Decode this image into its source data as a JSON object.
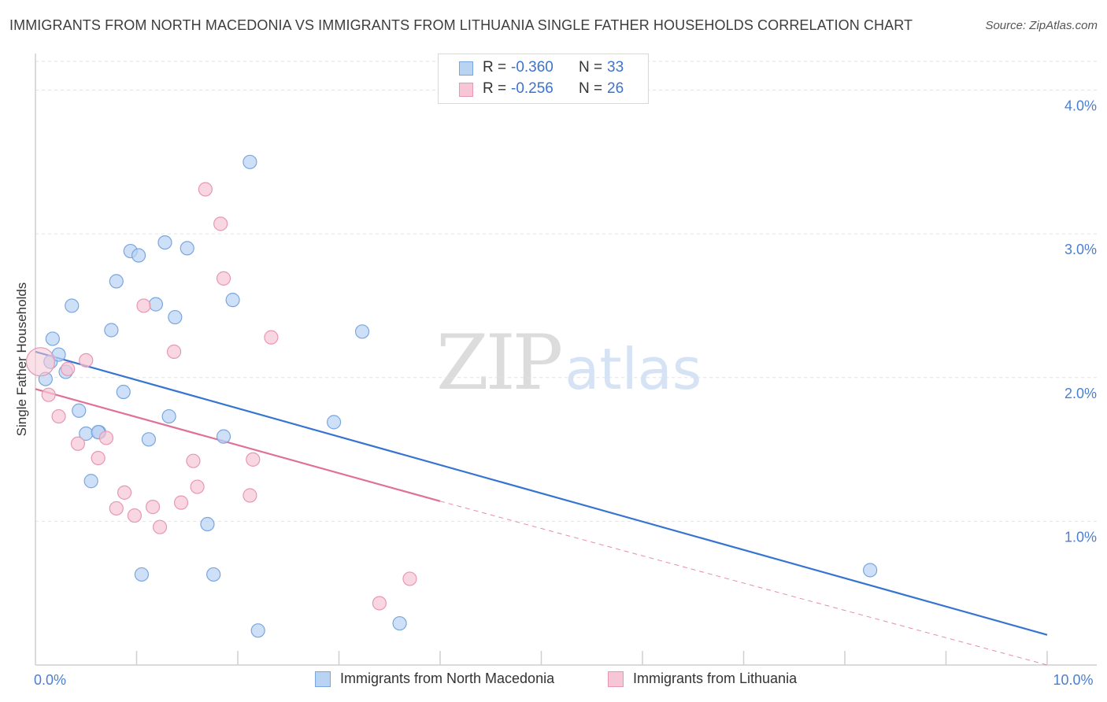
{
  "header": {
    "title": "IMMIGRANTS FROM NORTH MACEDONIA VS IMMIGRANTS FROM LITHUANIA SINGLE FATHER HOUSEHOLDS CORRELATION CHART",
    "source": "Source: ZipAtlas.com"
  },
  "watermark": {
    "zip": "ZIP",
    "atlas": "atlas"
  },
  "legend": {
    "rows": [
      {
        "r_label": "R =",
        "r_value": "-0.360",
        "n_label": "N =",
        "n_value": "33"
      },
      {
        "r_label": "R =",
        "r_value": "-0.256",
        "n_label": "N =",
        "n_value": "26"
      }
    ]
  },
  "bottom_legend": {
    "series_a": "Immigrants from North Macedonia",
    "series_b": "Immigrants from Lithuania"
  },
  "colors": {
    "blue_fill": "#b9d3f3",
    "blue_stroke": "#7aa6df",
    "blue_line": "#3575d1",
    "pink_fill": "#f7c6d6",
    "pink_stroke": "#e897b3",
    "pink_line": "#e07098",
    "grid": "#e2e2e2",
    "axis": "#cfcfcf"
  },
  "chart_data": {
    "type": "scatter",
    "title": "IMMIGRANTS FROM NORTH MACEDONIA VS IMMIGRANTS FROM LITHUANIA SINGLE FATHER HOUSEHOLDS CORRELATION CHART",
    "xlabel": "",
    "ylabel": "Single Father Households",
    "xlim": [
      0,
      10
    ],
    "ylim": [
      0,
      4.2
    ],
    "x_tick_labels": [
      {
        "value": 0,
        "label": "0.0%"
      },
      {
        "value": 10,
        "label": "10.0%"
      }
    ],
    "y_tick_labels": [
      {
        "value": 1,
        "label": "1.0%"
      },
      {
        "value": 2,
        "label": "2.0%"
      },
      {
        "value": 3,
        "label": "3.0%"
      },
      {
        "value": 4,
        "label": "4.0%"
      }
    ],
    "x_minor_ticks": [
      1,
      2,
      3,
      4,
      5,
      6,
      7,
      8,
      9,
      10
    ],
    "grid": true,
    "series": [
      {
        "name": "Immigrants from North Macedonia",
        "color": "blue",
        "points": [
          [
            0.15,
            2.11
          ],
          [
            0.1,
            1.99
          ],
          [
            0.17,
            2.27
          ],
          [
            0.23,
            2.16
          ],
          [
            0.3,
            2.04
          ],
          [
            0.36,
            2.5
          ],
          [
            0.43,
            1.77
          ],
          [
            0.5,
            1.61
          ],
          [
            0.55,
            1.28
          ],
          [
            0.63,
            1.62
          ],
          [
            0.75,
            2.33
          ],
          [
            0.8,
            2.67
          ],
          [
            0.87,
            1.9
          ],
          [
            0.94,
            2.88
          ],
          [
            1.02,
            2.85
          ],
          [
            1.05,
            0.63
          ],
          [
            1.12,
            1.57
          ],
          [
            1.19,
            2.51
          ],
          [
            1.28,
            2.94
          ],
          [
            1.32,
            1.73
          ],
          [
            1.38,
            2.42
          ],
          [
            1.5,
            2.9
          ],
          [
            1.7,
            0.98
          ],
          [
            1.76,
            0.63
          ],
          [
            1.86,
            1.59
          ],
          [
            1.95,
            2.54
          ],
          [
            2.12,
            3.5
          ],
          [
            2.2,
            0.24
          ],
          [
            2.95,
            1.69
          ],
          [
            3.23,
            2.32
          ],
          [
            3.6,
            0.29
          ],
          [
            8.25,
            0.66
          ],
          [
            0.62,
            1.62
          ]
        ],
        "trend": {
          "x": [
            0,
            10
          ],
          "y": [
            2.18,
            0.21
          ]
        }
      },
      {
        "name": "Immigrants from Lithuania",
        "color": "pink",
        "points": [
          [
            0.05,
            2.11
          ],
          [
            0.13,
            1.88
          ],
          [
            0.23,
            1.73
          ],
          [
            0.32,
            2.06
          ],
          [
            0.42,
            1.54
          ],
          [
            0.5,
            2.12
          ],
          [
            0.62,
            1.44
          ],
          [
            0.7,
            1.58
          ],
          [
            0.8,
            1.09
          ],
          [
            0.88,
            1.2
          ],
          [
            0.98,
            1.04
          ],
          [
            1.07,
            2.5
          ],
          [
            1.16,
            1.1
          ],
          [
            1.23,
            0.96
          ],
          [
            1.37,
            2.18
          ],
          [
            1.44,
            1.13
          ],
          [
            1.56,
            1.42
          ],
          [
            1.6,
            1.24
          ],
          [
            1.68,
            3.31
          ],
          [
            1.83,
            3.07
          ],
          [
            1.86,
            2.69
          ],
          [
            2.12,
            1.18
          ],
          [
            2.15,
            1.43
          ],
          [
            2.33,
            2.28
          ],
          [
            3.4,
            0.43
          ],
          [
            3.7,
            0.6
          ]
        ],
        "trend": {
          "x": [
            0,
            4.0
          ],
          "y": [
            1.92,
            1.14
          ]
        },
        "trend_dashed": {
          "x": [
            4.0,
            10
          ],
          "y": [
            1.14,
            0.0
          ]
        }
      }
    ]
  }
}
